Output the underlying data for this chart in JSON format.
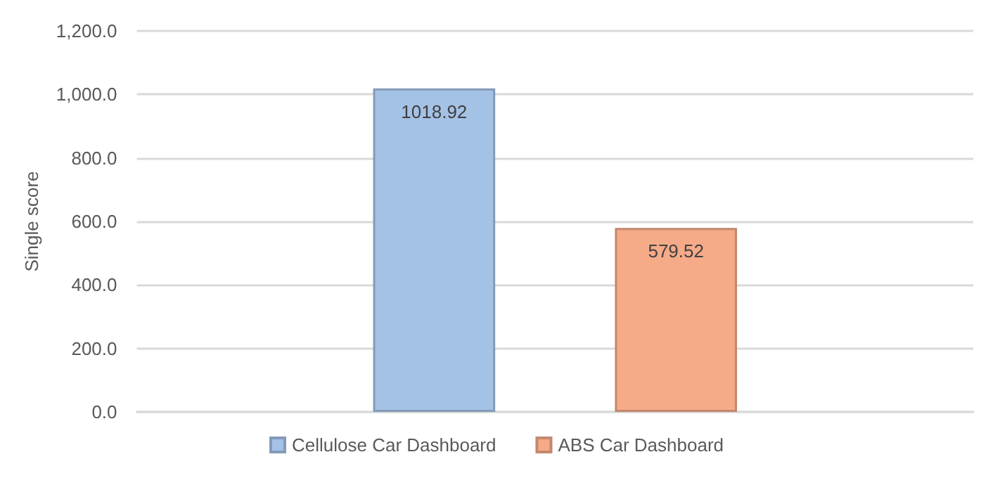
{
  "chart_data": {
    "type": "bar",
    "ylabel": "Single score",
    "categories": [
      null
    ],
    "series": [
      {
        "name": "Cellulose Car Dashboard",
        "color": "#a4c2e6",
        "values": [
          1018.92
        ]
      },
      {
        "name": "ABS Car Dashboard",
        "color": "#f5aa88",
        "values": [
          579.52
        ]
      }
    ],
    "ylim": [
      0,
      1200
    ],
    "yticks": [
      {
        "value": 0,
        "label": "0.0"
      },
      {
        "value": 200,
        "label": "200.0"
      },
      {
        "value": 400,
        "label": "400.0"
      },
      {
        "value": 600,
        "label": "600.0"
      },
      {
        "value": 800,
        "label": "800.0"
      },
      {
        "value": 1000,
        "label": "1,000.0"
      },
      {
        "value": 1200,
        "label": "1,200.0"
      }
    ],
    "grid": "y",
    "legend": "bottom",
    "data_labels": true
  }
}
